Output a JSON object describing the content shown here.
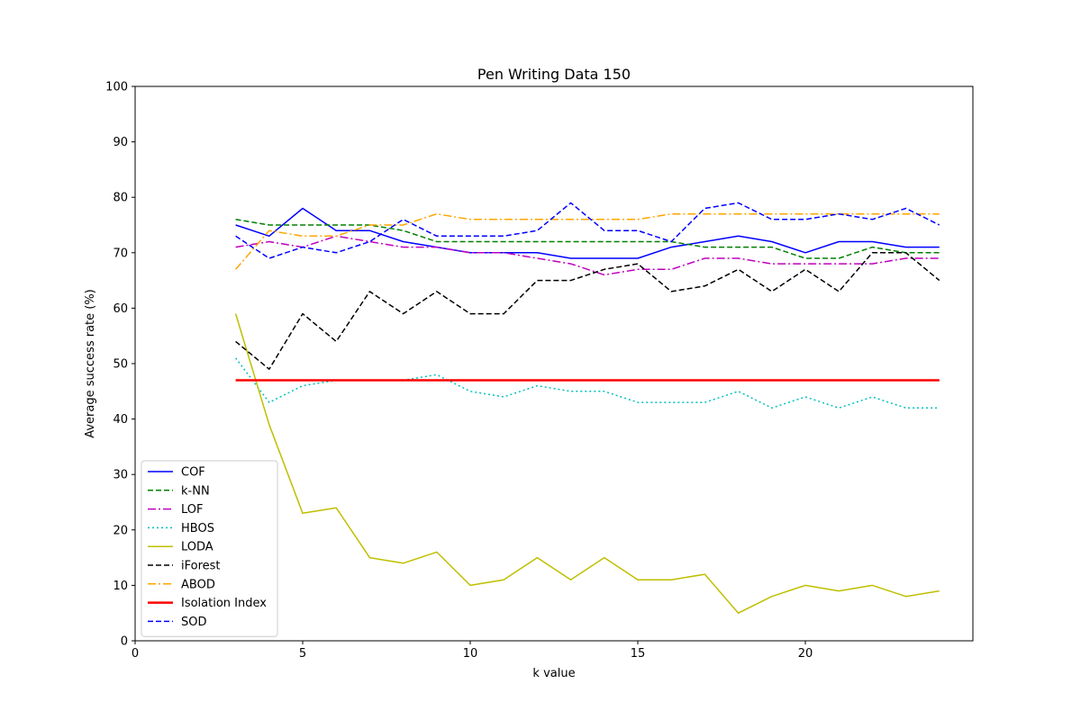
{
  "chart_data": {
    "type": "line",
    "title": "Pen Writing Data 150",
    "xlabel": "k value",
    "ylabel": "Average success rate (%)",
    "xlim": [
      0,
      25
    ],
    "ylim": [
      0,
      100
    ],
    "xticks": [
      0,
      5,
      10,
      15,
      20
    ],
    "yticks": [
      0,
      10,
      20,
      30,
      40,
      50,
      60,
      70,
      80,
      90,
      100
    ],
    "grid": false,
    "legend_position": "lower-left",
    "x": [
      3,
      4,
      5,
      6,
      7,
      8,
      9,
      10,
      11,
      12,
      13,
      14,
      15,
      16,
      17,
      18,
      19,
      20,
      21,
      22,
      23,
      24
    ],
    "series": [
      {
        "name": "COF",
        "color": "#0000ff",
        "dash": "solid",
        "width": 1.5,
        "values": [
          75,
          73,
          78,
          74,
          74,
          72,
          71,
          70,
          70,
          70,
          69,
          69,
          69,
          71,
          72,
          73,
          72,
          70,
          72,
          72,
          71,
          71
        ]
      },
      {
        "name": "k-NN",
        "color": "#008000",
        "dash": "dashed",
        "width": 1.5,
        "values": [
          76,
          75,
          75,
          75,
          75,
          74,
          72,
          72,
          72,
          72,
          72,
          72,
          72,
          72,
          71,
          71,
          71,
          69,
          69,
          71,
          70,
          70
        ]
      },
      {
        "name": "LOF",
        "color": "#bf00bf",
        "dash": "dashdot",
        "width": 1.5,
        "values": [
          71,
          72,
          71,
          73,
          72,
          71,
          71,
          70,
          70,
          69,
          68,
          66,
          67,
          67,
          69,
          69,
          68,
          68,
          68,
          68,
          69,
          69
        ]
      },
      {
        "name": "HBOS",
        "color": "#00bfbf",
        "dash": "dotted",
        "width": 1.5,
        "values": [
          51,
          43,
          46,
          47,
          47,
          47,
          48,
          45,
          44,
          46,
          45,
          45,
          43,
          43,
          43,
          45,
          42,
          44,
          42,
          44,
          42,
          42
        ]
      },
      {
        "name": "LODA",
        "color": "#bfbf00",
        "dash": "solid",
        "width": 1.5,
        "values": [
          59,
          39,
          23,
          24,
          15,
          14,
          16,
          10,
          11,
          15,
          11,
          15,
          11,
          11,
          12,
          5,
          8,
          10,
          9,
          10,
          8,
          9
        ]
      },
      {
        "name": "iForest",
        "color": "#000000",
        "dash": "dashed",
        "width": 1.5,
        "values": [
          54,
          49,
          59,
          54,
          63,
          59,
          63,
          59,
          59,
          65,
          65,
          67,
          68,
          63,
          64,
          67,
          63,
          67,
          63,
          70,
          70,
          65
        ]
      },
      {
        "name": "ABOD",
        "color": "#ffa500",
        "dash": "dashdot",
        "width": 1.5,
        "values": [
          67,
          74,
          73,
          73,
          75,
          75,
          77,
          76,
          76,
          76,
          76,
          76,
          76,
          77,
          77,
          77,
          77,
          77,
          77,
          77,
          77,
          77
        ]
      },
      {
        "name": "Isolation Index",
        "color": "#ff0000",
        "dash": "solid",
        "width": 2.5,
        "values": [
          47,
          47,
          47,
          47,
          47,
          47,
          47,
          47,
          47,
          47,
          47,
          47,
          47,
          47,
          47,
          47,
          47,
          47,
          47,
          47,
          47,
          47
        ]
      },
      {
        "name": "SOD",
        "color": "#0000ff",
        "dash": "dashed",
        "width": 1.5,
        "values": [
          73,
          69,
          71,
          70,
          72,
          76,
          73,
          73,
          73,
          74,
          79,
          74,
          74,
          72,
          78,
          79,
          76,
          76,
          77,
          76,
          78,
          75
        ]
      }
    ]
  }
}
